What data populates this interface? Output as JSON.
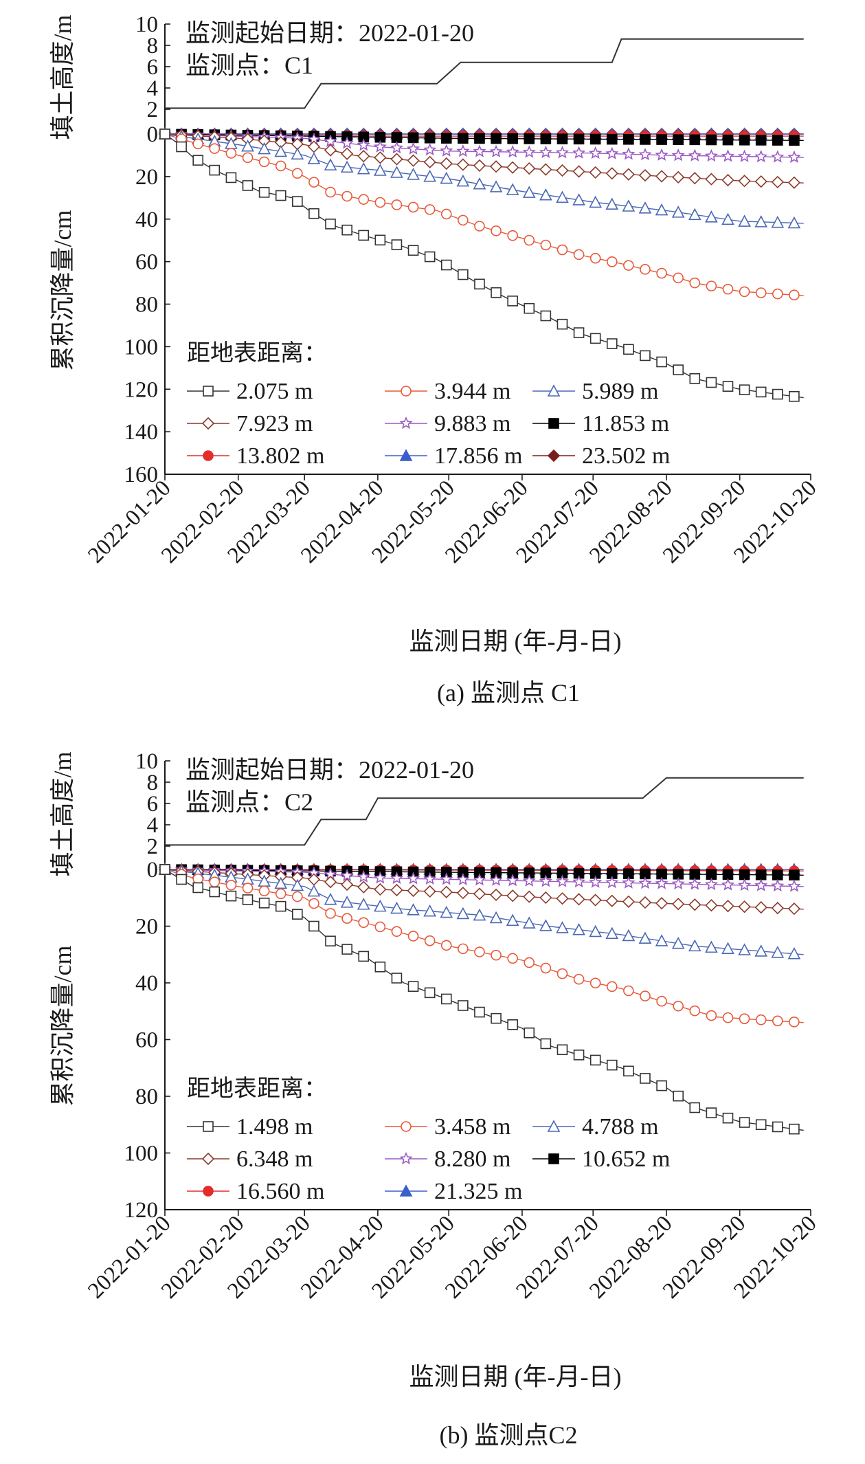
{
  "chart_data": [
    {
      "type": "line",
      "annotation": {
        "start": "监测起始日期：2022-01-20",
        "point": "监测点：C1"
      },
      "caption": "(a) 监测点 C1",
      "xlabel": "监测日期 (年-月-日)",
      "ylabel_fill": "填土高度/m",
      "ylabel_settle": "累积沉降量/cm",
      "legend_title": "距地表距离：",
      "legend_placement": "lower-left",
      "fill_ylim": [
        0,
        10
      ],
      "fill_ticks": [
        "10",
        "8",
        "6",
        "4",
        "2"
      ],
      "settle_ylim": [
        0,
        160
      ],
      "settle_ticks": [
        "0",
        "20",
        "40",
        "60",
        "80",
        "100",
        "120",
        "140",
        "160"
      ],
      "x_ticks": [
        "2022-01-20",
        "2022-02-20",
        "2022-03-20",
        "2022-04-20",
        "2022-05-20",
        "2022-06-20",
        "2022-07-20",
        "2022-08-20",
        "2022-09-20",
        "2022-10-20"
      ],
      "fill_height": [
        [
          "2022-01-20",
          2.1
        ],
        [
          "2022-03-20",
          2.1
        ],
        [
          "2022-03-27",
          4.4
        ],
        [
          "2022-05-15",
          4.4
        ],
        [
          "2022-05-25",
          6.4
        ],
        [
          "2022-07-28",
          6.4
        ],
        [
          "2022-08-01",
          8.6
        ],
        [
          "2022-10-17",
          8.6
        ]
      ],
      "series": [
        {
          "name": "2.075 m",
          "color": "#333333",
          "marker": "square-open",
          "points": [
            [
              "2022-01-20",
              0
            ],
            [
              "2022-01-25",
              4
            ],
            [
              "2022-02-01",
              11
            ],
            [
              "2022-02-10",
              17
            ],
            [
              "2022-02-20",
              22
            ],
            [
              "2022-03-01",
              27
            ],
            [
              "2022-03-15",
              30
            ],
            [
              "2022-03-22",
              36
            ],
            [
              "2022-04-01",
              43
            ],
            [
              "2022-04-15",
              48
            ],
            [
              "2022-05-01",
              53
            ],
            [
              "2022-05-15",
              59
            ],
            [
              "2022-06-01",
              70
            ],
            [
              "2022-06-15",
              78
            ],
            [
              "2022-07-01",
              86
            ],
            [
              "2022-07-15",
              94
            ],
            [
              "2022-08-01",
              100
            ],
            [
              "2022-08-20",
              108
            ],
            [
              "2022-09-01",
              115
            ],
            [
              "2022-09-20",
              120
            ],
            [
              "2022-10-17",
              124
            ]
          ]
        },
        {
          "name": "3.944 m",
          "color": "#e8593a",
          "marker": "circle-open",
          "points": [
            [
              "2022-01-20",
              0
            ],
            [
              "2022-02-01",
              4
            ],
            [
              "2022-02-20",
              10
            ],
            [
              "2022-03-10",
              15
            ],
            [
              "2022-03-20",
              20
            ],
            [
              "2022-04-01",
              28
            ],
            [
              "2022-04-20",
              32
            ],
            [
              "2022-05-15",
              36
            ],
            [
              "2022-06-01",
              43
            ],
            [
              "2022-06-20",
              49
            ],
            [
              "2022-07-15",
              57
            ],
            [
              "2022-08-01",
              61
            ],
            [
              "2022-08-20",
              66
            ],
            [
              "2022-09-01",
              70
            ],
            [
              "2022-09-20",
              74
            ],
            [
              "2022-10-17",
              76
            ]
          ]
        },
        {
          "name": "5.989 m",
          "color": "#4a68b5",
          "marker": "triangle-open",
          "points": [
            [
              "2022-01-20",
              0
            ],
            [
              "2022-02-01",
              2
            ],
            [
              "2022-02-20",
              5
            ],
            [
              "2022-03-20",
              10
            ],
            [
              "2022-04-01",
              15
            ],
            [
              "2022-04-20",
              17
            ],
            [
              "2022-05-20",
              21
            ],
            [
              "2022-06-20",
              27
            ],
            [
              "2022-07-20",
              32
            ],
            [
              "2022-08-20",
              36
            ],
            [
              "2022-09-20",
              41
            ],
            [
              "2022-10-17",
              42
            ]
          ]
        },
        {
          "name": "7.923 m",
          "color": "#8b3a2a",
          "marker": "diamond-open",
          "points": [
            [
              "2022-01-20",
              0
            ],
            [
              "2022-02-20",
              2
            ],
            [
              "2022-03-20",
              5
            ],
            [
              "2022-04-10",
              10
            ],
            [
              "2022-05-20",
              14
            ],
            [
              "2022-06-20",
              16
            ],
            [
              "2022-07-20",
              18
            ],
            [
              "2022-08-20",
              20
            ],
            [
              "2022-09-20",
              22
            ],
            [
              "2022-10-17",
              23
            ]
          ]
        },
        {
          "name": "9.883 m",
          "color": "#9b59c4",
          "marker": "star-open",
          "points": [
            [
              "2022-01-20",
              0
            ],
            [
              "2022-03-20",
              2
            ],
            [
              "2022-04-20",
              6
            ],
            [
              "2022-05-20",
              8
            ],
            [
              "2022-07-20",
              9
            ],
            [
              "2022-08-20",
              10
            ],
            [
              "2022-10-17",
              11
            ]
          ]
        },
        {
          "name": "11.853 m",
          "color": "#000000",
          "marker": "square-filled",
          "points": [
            [
              "2022-01-20",
              0
            ],
            [
              "2022-03-20",
              1
            ],
            [
              "2022-05-20",
              2
            ],
            [
              "2022-10-17",
              3
            ]
          ]
        },
        {
          "name": "13.802 m",
          "color": "#e32c2c",
          "marker": "circle-filled",
          "points": [
            [
              "2022-01-20",
              0
            ],
            [
              "2022-04-20",
              1
            ],
            [
              "2022-10-17",
              1
            ]
          ]
        },
        {
          "name": "17.856 m",
          "color": "#3b5fc9",
          "marker": "triangle-filled",
          "points": [
            [
              "2022-01-20",
              0
            ],
            [
              "2022-10-17",
              0
            ]
          ]
        },
        {
          "name": "23.502 m",
          "color": "#7a1f1f",
          "marker": "diamond-filled",
          "points": [
            [
              "2022-01-20",
              0
            ],
            [
              "2022-10-17",
              0
            ]
          ]
        }
      ]
    },
    {
      "type": "line",
      "annotation": {
        "start": "监测起始日期：2022-01-20",
        "point": "监测点：C2"
      },
      "caption": "(b) 监测点C2",
      "xlabel": "监测日期 (年-月-日)",
      "ylabel_fill": "填土高度/m",
      "ylabel_settle": "累积沉降量/cm",
      "legend_title": "距地表距离：",
      "legend_placement": "lower-left",
      "fill_ylim": [
        0,
        10
      ],
      "fill_ticks": [
        "10",
        "8",
        "6",
        "4",
        "2"
      ],
      "settle_ylim": [
        0,
        120
      ],
      "settle_ticks": [
        "0",
        "20",
        "40",
        "60",
        "80",
        "100",
        "120"
      ],
      "x_ticks": [
        "2022-01-20",
        "2022-02-20",
        "2022-03-20",
        "2022-04-20",
        "2022-05-20",
        "2022-06-20",
        "2022-07-20",
        "2022-08-20",
        "2022-09-20",
        "2022-10-20"
      ],
      "fill_height": [
        [
          "2022-01-20",
          2.1
        ],
        [
          "2022-03-20",
          2.1
        ],
        [
          "2022-03-27",
          4.5
        ],
        [
          "2022-04-15",
          4.5
        ],
        [
          "2022-04-20",
          6.5
        ],
        [
          "2022-08-10",
          6.5
        ],
        [
          "2022-08-20",
          8.4
        ],
        [
          "2022-10-17",
          8.4
        ]
      ],
      "series": [
        {
          "name": "1.498 m",
          "color": "#333333",
          "marker": "square-open",
          "points": [
            [
              "2022-01-20",
              0
            ],
            [
              "2022-02-01",
              6
            ],
            [
              "2022-02-20",
              10
            ],
            [
              "2022-03-10",
              13
            ],
            [
              "2022-03-20",
              17
            ],
            [
              "2022-04-01",
              26
            ],
            [
              "2022-04-15",
              31
            ],
            [
              "2022-05-01",
              40
            ],
            [
              "2022-05-20",
              46
            ],
            [
              "2022-06-01",
              50
            ],
            [
              "2022-06-20",
              56
            ],
            [
              "2022-07-01",
              62
            ],
            [
              "2022-07-20",
              67
            ],
            [
              "2022-08-01",
              70
            ],
            [
              "2022-08-20",
              77
            ],
            [
              "2022-09-01",
              84
            ],
            [
              "2022-09-20",
              89
            ],
            [
              "2022-10-17",
              92
            ]
          ]
        },
        {
          "name": "3.458 m",
          "color": "#e8593a",
          "marker": "circle-open",
          "points": [
            [
              "2022-01-20",
              0
            ],
            [
              "2022-02-01",
              3
            ],
            [
              "2022-02-20",
              6
            ],
            [
              "2022-03-20",
              10
            ],
            [
              "2022-04-01",
              16
            ],
            [
              "2022-04-20",
              20
            ],
            [
              "2022-05-20",
              27
            ],
            [
              "2022-06-20",
              32
            ],
            [
              "2022-07-15",
              39
            ],
            [
              "2022-08-01",
              42
            ],
            [
              "2022-08-20",
              47
            ],
            [
              "2022-09-10",
              52
            ],
            [
              "2022-10-17",
              54
            ]
          ]
        },
        {
          "name": "4.788 m",
          "color": "#4a68b5",
          "marker": "triangle-open",
          "points": [
            [
              "2022-01-20",
              0
            ],
            [
              "2022-02-20",
              3
            ],
            [
              "2022-03-20",
              6
            ],
            [
              "2022-04-01",
              11
            ],
            [
              "2022-05-01",
              14
            ],
            [
              "2022-06-01",
              16
            ],
            [
              "2022-07-01",
              20
            ],
            [
              "2022-08-01",
              23
            ],
            [
              "2022-09-01",
              27
            ],
            [
              "2022-10-17",
              30
            ]
          ]
        },
        {
          "name": "6.348 m",
          "color": "#8b3a2a",
          "marker": "diamond-open",
          "points": [
            [
              "2022-01-20",
              0
            ],
            [
              "2022-03-20",
              3
            ],
            [
              "2022-04-20",
              7
            ],
            [
              "2022-05-20",
              8
            ],
            [
              "2022-07-01",
              10
            ],
            [
              "2022-08-20",
              12
            ],
            [
              "2022-10-17",
              14
            ]
          ]
        },
        {
          "name": "8.280 m",
          "color": "#9b59c4",
          "marker": "star-open",
          "points": [
            [
              "2022-01-20",
              0
            ],
            [
              "2022-03-20",
              1
            ],
            [
              "2022-04-20",
              3
            ],
            [
              "2022-06-20",
              4
            ],
            [
              "2022-08-20",
              5
            ],
            [
              "2022-10-17",
              6
            ]
          ]
        },
        {
          "name": "10.652 m",
          "color": "#000000",
          "marker": "square-filled",
          "points": [
            [
              "2022-01-20",
              0
            ],
            [
              "2022-05-20",
              1
            ],
            [
              "2022-10-17",
              2
            ]
          ]
        },
        {
          "name": "16.560 m",
          "color": "#e32c2c",
          "marker": "circle-filled",
          "points": [
            [
              "2022-01-20",
              0
            ],
            [
              "2022-10-17",
              0.5
            ]
          ]
        },
        {
          "name": "21.325 m",
          "color": "#3b5fc9",
          "marker": "triangle-filled",
          "points": [
            [
              "2022-01-20",
              0
            ],
            [
              "2022-10-17",
              0
            ]
          ]
        }
      ]
    }
  ]
}
